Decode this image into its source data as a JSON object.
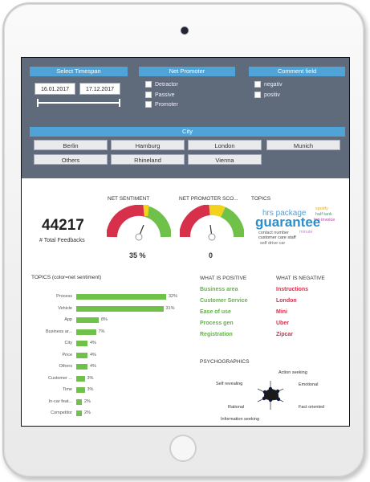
{
  "filters": {
    "timespan_label": "Select Timespan",
    "date_from": "16.01.2017",
    "date_to": "17.12.2017",
    "net_promoter_label": "Net Promoter",
    "net_promoter_options": [
      "Detractor",
      "Passive",
      "Promoter"
    ],
    "comment_label": "Comment field",
    "comment_options": [
      "negativ",
      "positiv"
    ],
    "city_label": "City",
    "cities": [
      "Berlin",
      "Hamburg",
      "London",
      "Munich",
      "Others",
      "Rhineland",
      "Vienna"
    ]
  },
  "kpis": {
    "total_feedbacks": "44217",
    "total_label": "# Total Feedbacks",
    "net_sentiment_label": "NET SENTIMENT",
    "net_sentiment_value": "35 %",
    "net_sentiment_fraction": 0.62,
    "net_promoter_label": "NET PROMOTER SCO...",
    "net_promoter_value": "0",
    "topics_label": "TOPICS"
  },
  "wordcloud": [
    {
      "text": "hrs package",
      "color": "#4aa3df"
    },
    {
      "text": "spotify",
      "color": "#e0a93a"
    },
    {
      "text": "half tank",
      "color": "#3aa86b"
    },
    {
      "text": "trip invoice",
      "color": "#b0409d"
    },
    {
      "text": "guarantee",
      "color": "#2a8fd1"
    },
    {
      "text": "contact number",
      "color": "#555555"
    },
    {
      "text": "minute",
      "color": "#d37bd6"
    },
    {
      "text": "customer care staff",
      "color": "#444444"
    },
    {
      "text": "self drive car",
      "color": "#666666"
    }
  ],
  "topics_chart": {
    "title": "TOPICS (color=net sentiment)",
    "rows": [
      {
        "label": "Process",
        "value": 32,
        "text": "32%"
      },
      {
        "label": "Vehicle",
        "value": 31,
        "text": "31%"
      },
      {
        "label": "App",
        "value": 8,
        "text": "8%"
      },
      {
        "label": "Business ar...",
        "value": 7,
        "text": "7%"
      },
      {
        "label": "City",
        "value": 4,
        "text": "4%"
      },
      {
        "label": "Price",
        "value": 4,
        "text": "4%"
      },
      {
        "label": "Others",
        "value": 4,
        "text": "4%"
      },
      {
        "label": "Customer ...",
        "value": 3,
        "text": "3%"
      },
      {
        "label": "Time",
        "value": 3,
        "text": "3%"
      },
      {
        "label": "In-car feat...",
        "value": 2,
        "text": "2%"
      },
      {
        "label": "Competitor",
        "value": 2,
        "text": "2%"
      }
    ]
  },
  "positive": {
    "title": "WHAT IS POSITIVE",
    "items": [
      "Business area",
      "Customer Service",
      "Ease of use",
      "Process gen",
      "Registration"
    ]
  },
  "negative": {
    "title": "WHAT IS NEGATIVE",
    "items": [
      "Instructions",
      "London",
      "Mini",
      "Uber",
      "Zipcar"
    ]
  },
  "psychographics": {
    "title": "PSYCHOGRAPHICS",
    "axes": [
      "Action seeking",
      "Emotional",
      "Fact oriented",
      "Information seeking",
      "Rational",
      "Self revealing"
    ]
  },
  "colors": {
    "positive": "#6fc14a",
    "negative": "#d6304b",
    "neutral": "#f2d31b",
    "filter_bg": "#5f6b7a",
    "filter_head": "#4fa3d6"
  }
}
